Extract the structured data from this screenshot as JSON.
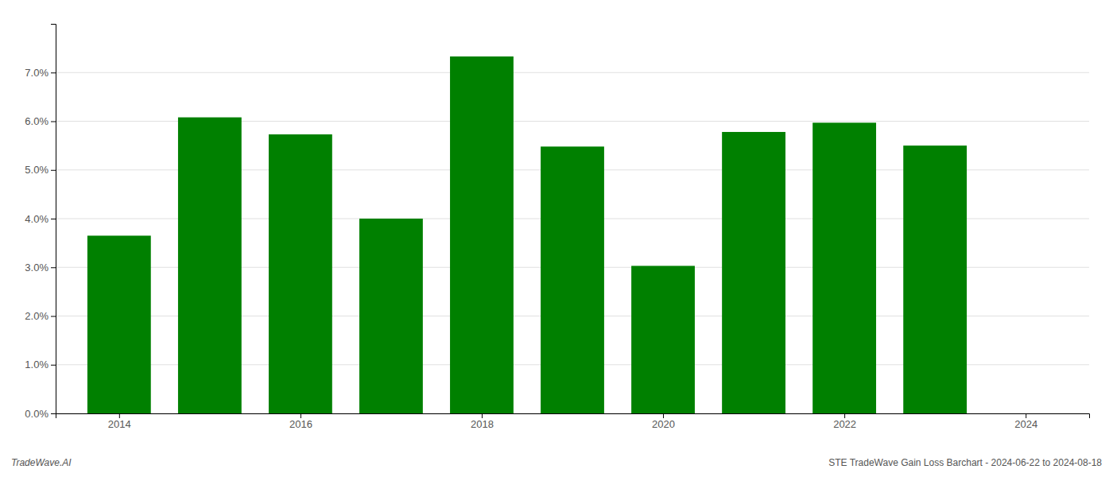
{
  "chart_data": {
    "type": "bar",
    "x": [
      2014,
      2015,
      2016,
      2017,
      2018,
      2019,
      2020,
      2021,
      2022,
      2023
    ],
    "values": [
      0.0365,
      0.0608,
      0.0573,
      0.04,
      0.0733,
      0.0548,
      0.0303,
      0.0578,
      0.0597,
      0.055
    ],
    "color": "#008000",
    "xlim": [
      2013.3,
      2024.7
    ],
    "xticks": [
      2014,
      2016,
      2018,
      2020,
      2022,
      2024
    ],
    "ylim": [
      0,
      0.08
    ],
    "yticks": [
      {
        "value": 0.0,
        "label": "0.0%"
      },
      {
        "value": 0.01,
        "label": "1.0%"
      },
      {
        "value": 0.02,
        "label": "2.0%"
      },
      {
        "value": 0.03,
        "label": "3.0%"
      },
      {
        "value": 0.04,
        "label": "4.0%"
      },
      {
        "value": 0.05,
        "label": "5.0%"
      },
      {
        "value": 0.06,
        "label": "6.0%"
      },
      {
        "value": 0.07,
        "label": "7.0%"
      }
    ],
    "grid": true,
    "annotations": [
      "TradeWave.AI",
      "STE TradeWave Gain Loss Barchart - 2024-06-22 to 2024-08-18"
    ]
  }
}
